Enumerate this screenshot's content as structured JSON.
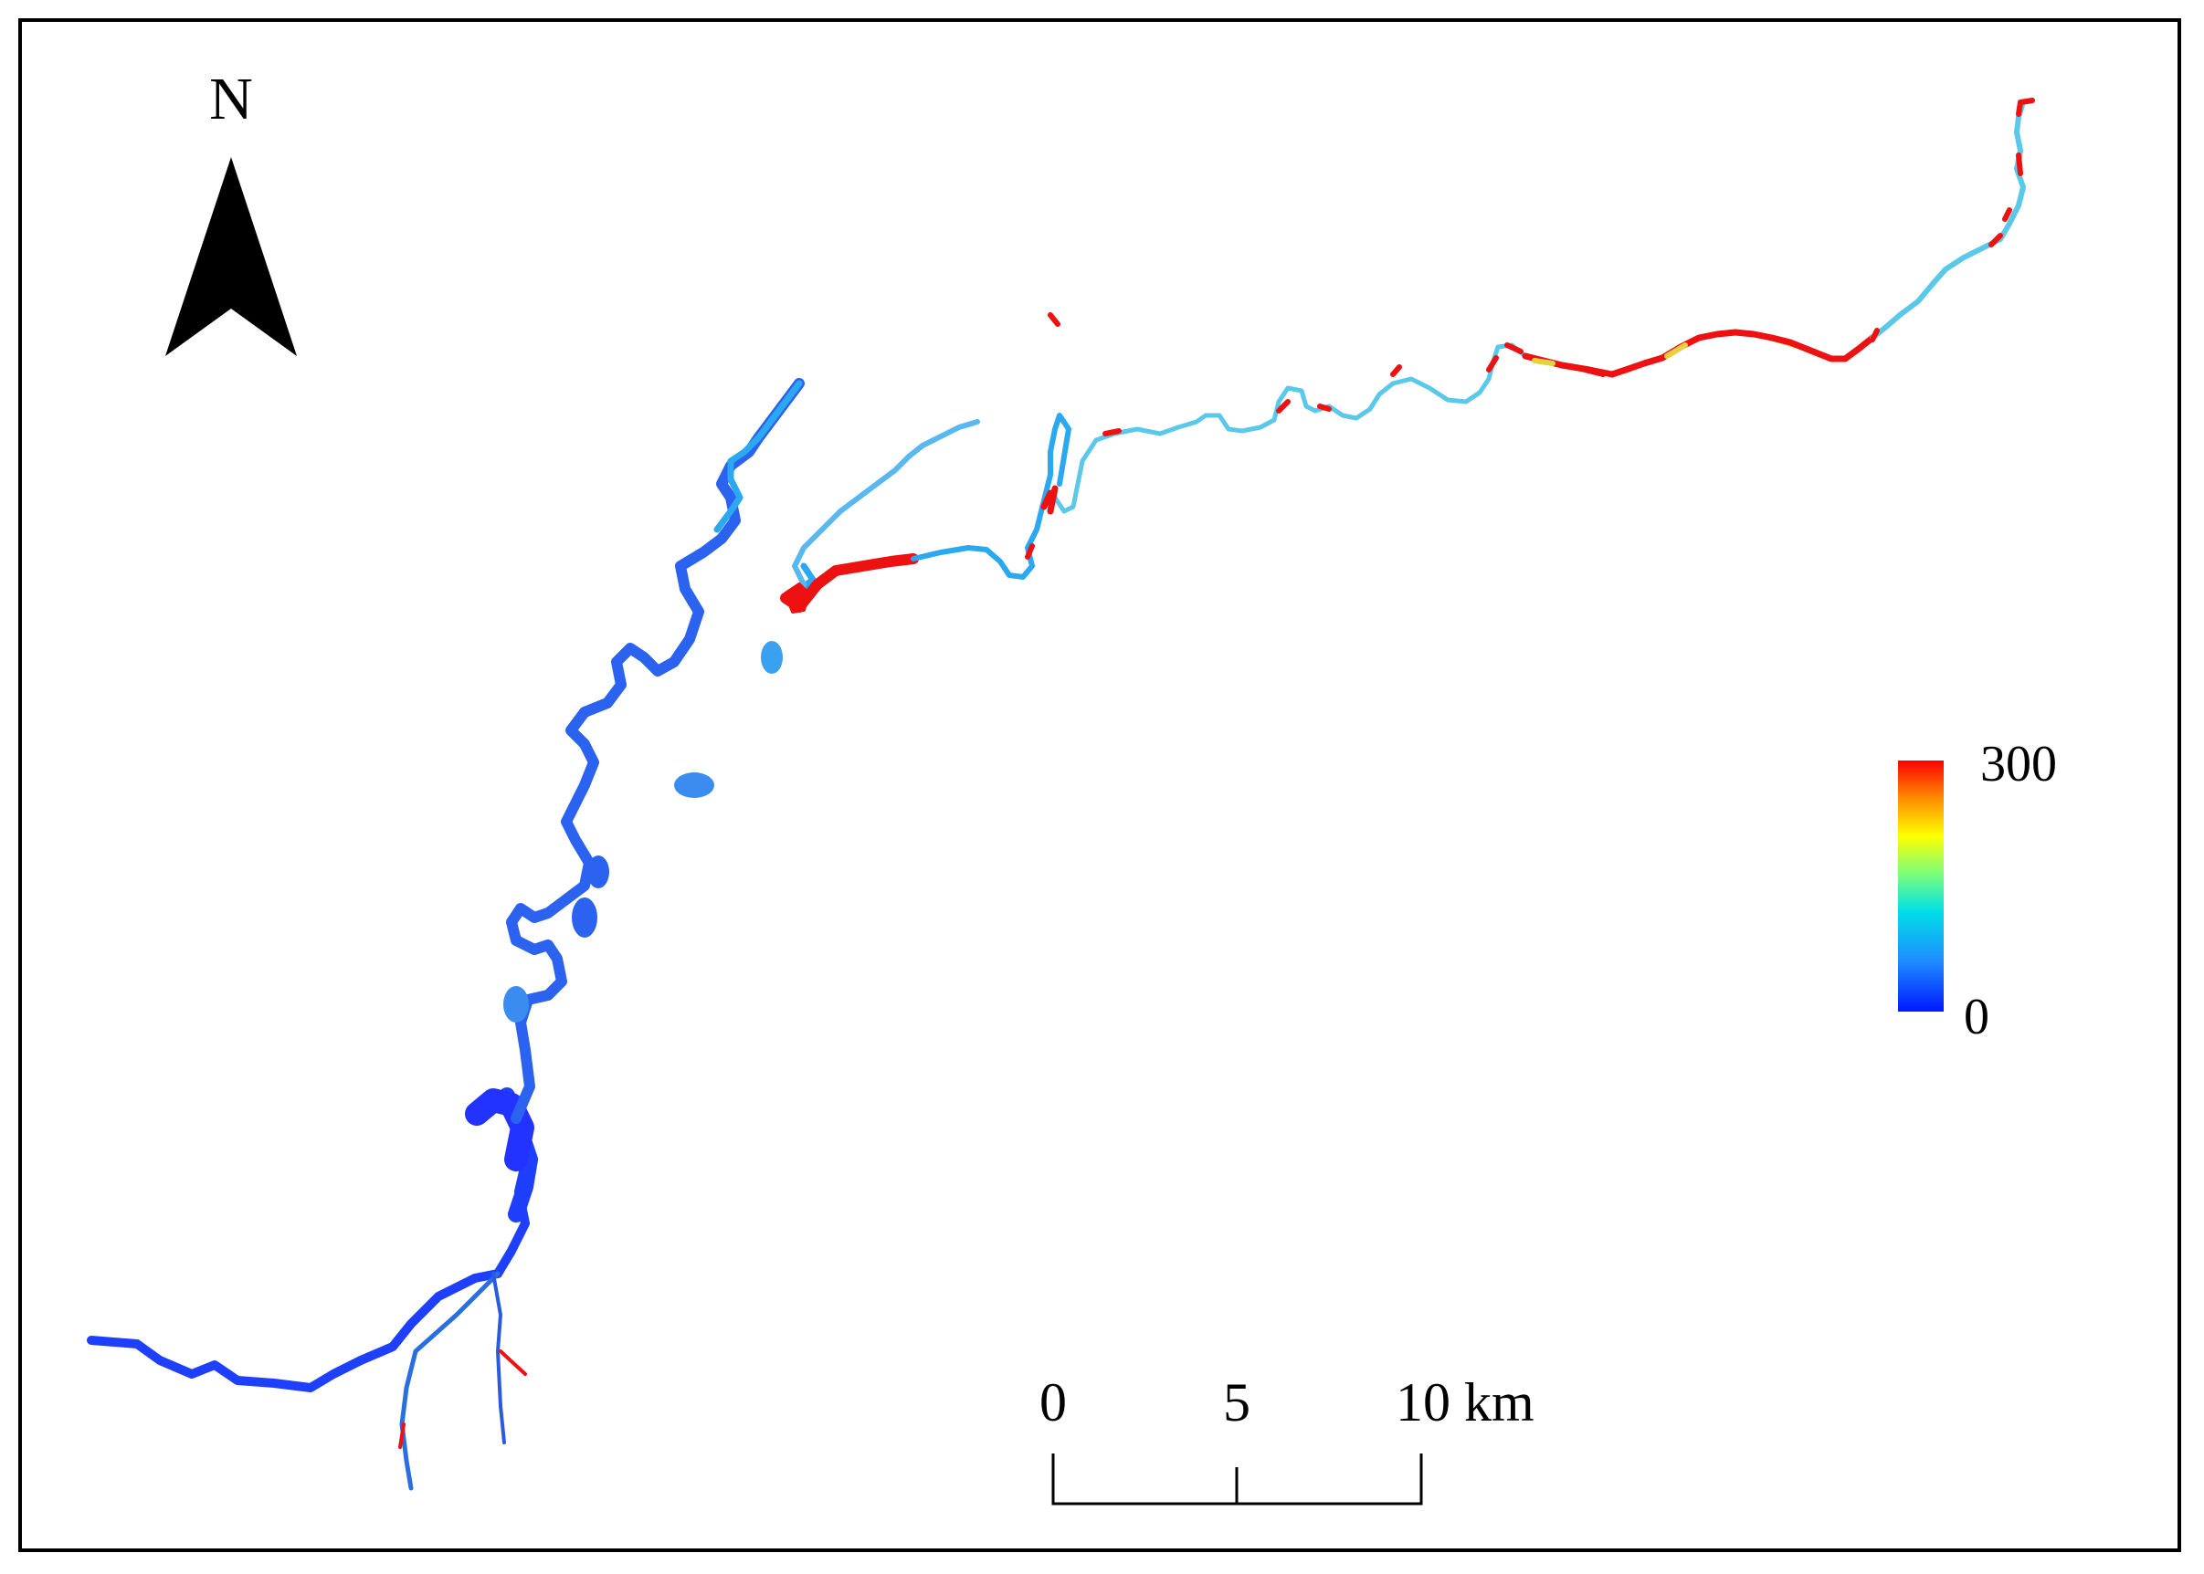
{
  "north_arrow": {
    "label": "N",
    "icon": "north-arrow-icon"
  },
  "legend": {
    "max_label": "300",
    "min_label": "0",
    "max_value": 300,
    "min_value": 0,
    "colors": [
      "#0018ff",
      "#1e8cff",
      "#00e0e8",
      "#7dff7a",
      "#ffff00",
      "#ff8c00",
      "#ff0000"
    ]
  },
  "scale_bar": {
    "ticks": [
      "0",
      "5",
      "10 km"
    ],
    "tick_values_km": [
      0,
      5,
      10
    ]
  },
  "river": {
    "color_low": "#1f3fff",
    "color_mid": "#2aa8f0",
    "color_cyan": "#6fd8e8",
    "color_high": "#ee1111",
    "color_yellow": "#e8d040"
  }
}
